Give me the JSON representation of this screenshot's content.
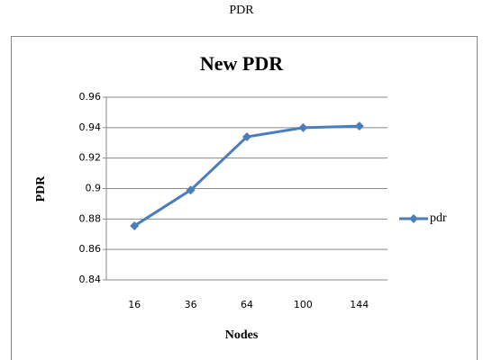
{
  "caption": "PDR",
  "chart_data": {
    "type": "line",
    "title": "New PDR",
    "xlabel": "Nodes",
    "ylabel": "PDR",
    "categories": [
      "16",
      "36",
      "64",
      "100",
      "144"
    ],
    "series": [
      {
        "name": "pdr",
        "color": "#4a7ebb",
        "values": [
          0.8755,
          0.899,
          0.934,
          0.94,
          0.941
        ]
      }
    ],
    "ylim": [
      0.84,
      0.96
    ],
    "yticks": [
      0.84,
      0.86,
      0.88,
      0.9,
      0.92,
      0.94,
      0.96
    ],
    "grid": true,
    "legend": "right"
  }
}
